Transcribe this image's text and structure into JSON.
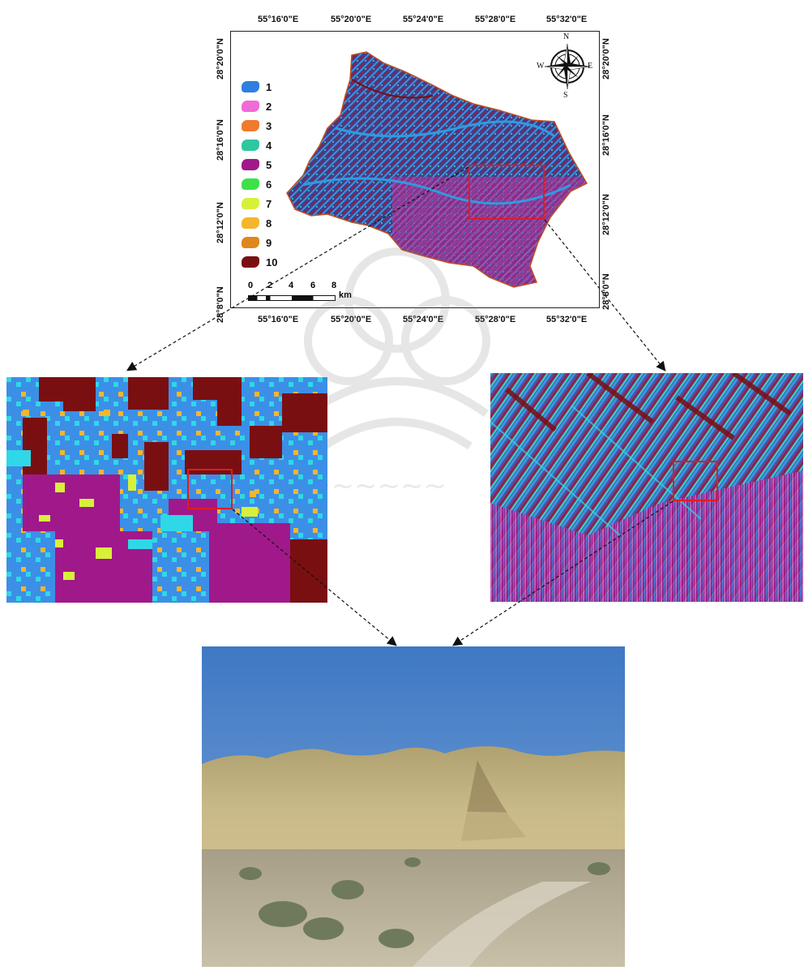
{
  "main_map": {
    "top_longitudes": [
      "55°16'0\"E",
      "55°20'0\"E",
      "55°24'0\"E",
      "55°28'0\"E",
      "55°32'0\"E"
    ],
    "bottom_longitudes": [
      "55°16'0\"E",
      "55°20'0\"E",
      "55°24'0\"E",
      "55°28'0\"E",
      "55°32'0\"E"
    ],
    "left_latitudes": [
      "28°20'0\"N",
      "28°16'0\"N",
      "28°12'0\"N",
      "28°8'0\"N"
    ],
    "right_latitudes": [
      "28°20'0\"N",
      "28°16'0\"N",
      "28°12'0\"N",
      "28°8'0\"N"
    ],
    "compass": {
      "n": "N",
      "s": "S",
      "e": "E",
      "w": "W"
    },
    "legend": [
      {
        "label": "1",
        "color": "#2f7fe0"
      },
      {
        "label": "2",
        "color": "#f06ad8"
      },
      {
        "label": "3",
        "color": "#f07a2e"
      },
      {
        "label": "4",
        "color": "#2fc7a0"
      },
      {
        "label": "5",
        "color": "#a0198a"
      },
      {
        "label": "6",
        "color": "#3ee04a"
      },
      {
        "label": "7",
        "color": "#d8f03a"
      },
      {
        "label": "8",
        "color": "#f5b62c"
      },
      {
        "label": "9",
        "color": "#e0861e"
      },
      {
        "label": "10",
        "color": "#7a0f12"
      }
    ],
    "scale_bar": {
      "ticks": [
        "0",
        "2",
        "4",
        "6",
        "8"
      ],
      "unit": "km"
    }
  },
  "colors": {
    "highlight": "#e11c1c",
    "bg": "#3c8fe6"
  }
}
